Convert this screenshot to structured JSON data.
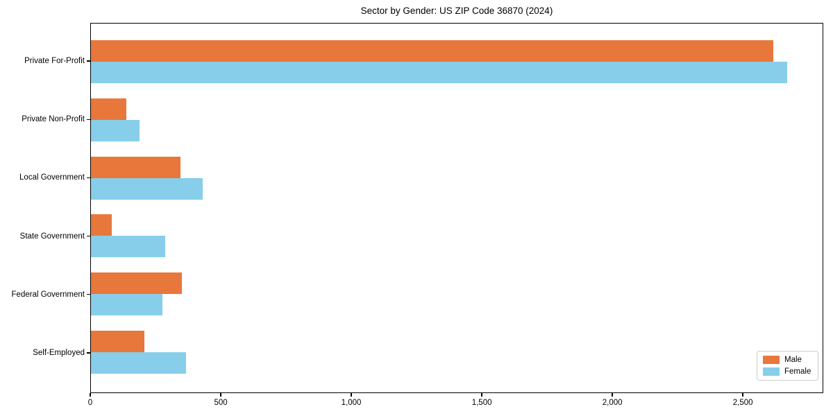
{
  "chart_data": {
    "type": "bar",
    "orientation": "horizontal",
    "title": "Sector by Gender: US ZIP Code 36870 (2024)",
    "categories": [
      "Private For-Profit",
      "Private Non-Profit",
      "Local Government",
      "State Government",
      "Federal Government",
      "Self-Employed"
    ],
    "series": [
      {
        "name": "Male",
        "color": "#e8773b",
        "values": [
          2618,
          135,
          345,
          80,
          348,
          204
        ]
      },
      {
        "name": "Female",
        "color": "#87ceeb",
        "values": [
          2672,
          186,
          430,
          285,
          275,
          364
        ]
      }
    ],
    "xlabel": "",
    "ylabel": "",
    "xlim": [
      0,
      2808
    ],
    "xticks": [
      0,
      500,
      1000,
      1500,
      2000,
      2500
    ],
    "xtick_labels": [
      "0",
      "500",
      "1,000",
      "1,500",
      "2,000",
      "2,500"
    ],
    "grid": false,
    "legend": {
      "position": "lower-right",
      "entries": [
        "Male",
        "Female"
      ]
    },
    "colors": {
      "background": "#ffffff",
      "spine": "#000000",
      "legend_border": "#cccccc"
    }
  }
}
